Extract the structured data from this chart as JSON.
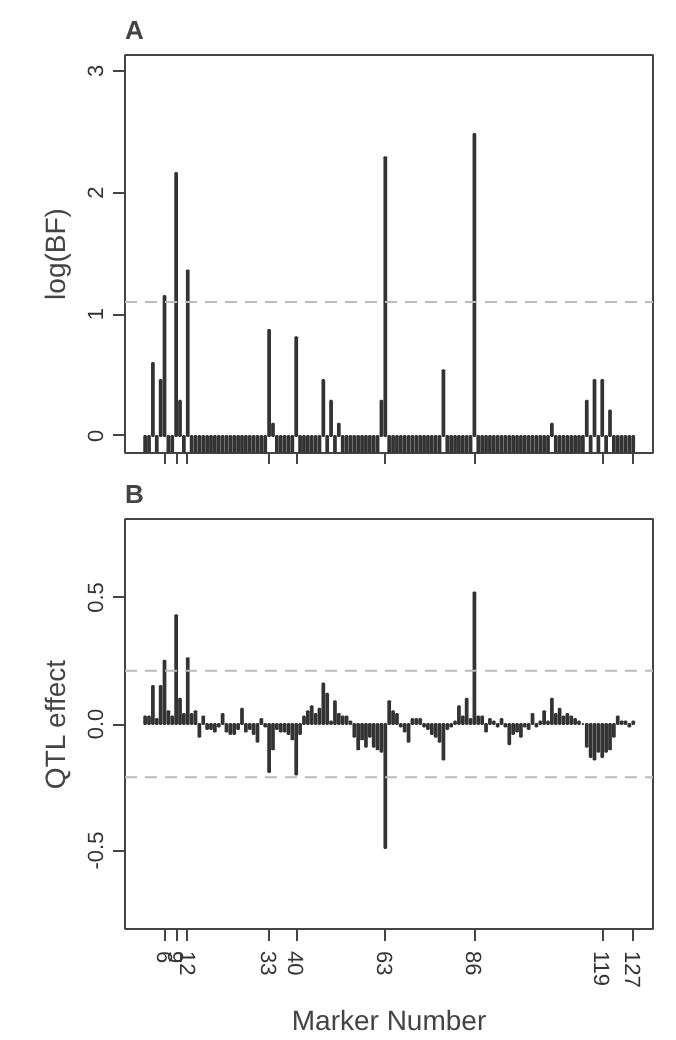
{
  "chart_data": [
    {
      "type": "bar",
      "title": "A",
      "ylabel": "log(BF)",
      "x": [
        1,
        2,
        3,
        4,
        5,
        6,
        7,
        8,
        9,
        10,
        11,
        12,
        13,
        14,
        15,
        16,
        17,
        18,
        19,
        20,
        21,
        22,
        23,
        24,
        25,
        26,
        27,
        28,
        29,
        30,
        31,
        32,
        33,
        34,
        35,
        36,
        37,
        38,
        39,
        40,
        41,
        42,
        43,
        44,
        45,
        46,
        47,
        48,
        49,
        50,
        51,
        52,
        53,
        54,
        55,
        56,
        57,
        58,
        59,
        60,
        61,
        62,
        63,
        64,
        65,
        66,
        67,
        68,
        69,
        70,
        71,
        72,
        73,
        74,
        75,
        76,
        77,
        78,
        79,
        80,
        81,
        82,
        83,
        84,
        85,
        86,
        87,
        88,
        89,
        90,
        91,
        92,
        93,
        94,
        95,
        96,
        97,
        98,
        99,
        100,
        101,
        102,
        103,
        104,
        105,
        106,
        107,
        108,
        109,
        110,
        111,
        112,
        113,
        114,
        115,
        116,
        117,
        118,
        119,
        120,
        121,
        122,
        123,
        124,
        125,
        126,
        127
      ],
      "values": [
        -0.13,
        -0.13,
        0.6,
        -0.13,
        0.46,
        1.15,
        -0.13,
        -0.13,
        2.16,
        0.29,
        -0.13,
        1.36,
        -0.13,
        -0.13,
        -0.13,
        -0.13,
        -0.13,
        -0.13,
        -0.13,
        -0.13,
        -0.13,
        -0.13,
        -0.13,
        -0.13,
        -0.13,
        -0.13,
        -0.13,
        -0.13,
        -0.13,
        -0.13,
        -0.13,
        -0.13,
        0.87,
        0.1,
        -0.13,
        -0.13,
        -0.13,
        -0.13,
        -0.13,
        0.81,
        -0.13,
        -0.13,
        -0.13,
        -0.13,
        -0.13,
        -0.13,
        0.46,
        -0.13,
        0.29,
        -0.13,
        0.1,
        -0.13,
        -0.13,
        -0.13,
        -0.13,
        -0.13,
        -0.13,
        -0.13,
        -0.13,
        -0.13,
        -0.13,
        0.29,
        2.29,
        -0.13,
        -0.13,
        -0.13,
        -0.13,
        -0.13,
        -0.13,
        -0.13,
        -0.13,
        -0.13,
        -0.13,
        -0.13,
        -0.13,
        -0.13,
        -0.13,
        0.54,
        -0.13,
        -0.13,
        -0.13,
        -0.13,
        -0.13,
        -0.13,
        -0.13,
        2.48,
        -0.13,
        -0.13,
        -0.13,
        -0.13,
        -0.13,
        -0.13,
        -0.13,
        -0.13,
        -0.13,
        -0.13,
        -0.13,
        -0.13,
        -0.13,
        -0.13,
        -0.13,
        -0.13,
        -0.13,
        -0.13,
        -0.13,
        0.1,
        -0.13,
        -0.13,
        -0.13,
        -0.13,
        -0.13,
        -0.13,
        -0.13,
        -0.13,
        0.29,
        -0.13,
        0.46,
        -0.13,
        0.46,
        -0.13,
        0.21,
        -0.13,
        -0.13,
        -0.13,
        -0.13,
        -0.13,
        -0.13
      ],
      "color": "#333333",
      "xlim": [
        -4.2,
        132.1
      ],
      "ylim": [
        -0.14,
        3.13
      ],
      "xticks": [
        {
          "value": 6,
          "label": null
        },
        {
          "value": 9,
          "label": null
        },
        {
          "value": 12,
          "label": null
        },
        {
          "value": 33,
          "label": null
        },
        {
          "value": 40,
          "label": null
        },
        {
          "value": 63,
          "label": null
        },
        {
          "value": 86,
          "label": null
        },
        {
          "value": 119,
          "label": null
        },
        {
          "value": 127,
          "label": null
        }
      ],
      "yticks": [
        0,
        1,
        2,
        3
      ],
      "tick_labels": "y",
      "ref_lines": [
        {
          "axis": "y",
          "value": 1.1,
          "color": "#bbbbbb",
          "line_style": "dashed"
        }
      ]
    },
    {
      "type": "bar",
      "title": "B",
      "ylabel": "QTL effect",
      "xlabel": "Marker Number",
      "x": [
        1,
        2,
        3,
        4,
        5,
        6,
        7,
        8,
        9,
        10,
        11,
        12,
        13,
        14,
        15,
        16,
        17,
        18,
        19,
        20,
        21,
        22,
        23,
        24,
        25,
        26,
        27,
        28,
        29,
        30,
        31,
        32,
        33,
        34,
        35,
        36,
        37,
        38,
        39,
        40,
        41,
        42,
        43,
        44,
        45,
        46,
        47,
        48,
        49,
        50,
        51,
        52,
        53,
        54,
        55,
        56,
        57,
        58,
        59,
        60,
        61,
        62,
        63,
        64,
        65,
        66,
        67,
        68,
        69,
        70,
        71,
        72,
        73,
        74,
        75,
        76,
        77,
        78,
        79,
        80,
        81,
        82,
        83,
        84,
        85,
        86,
        87,
        88,
        89,
        90,
        91,
        92,
        93,
        94,
        95,
        96,
        97,
        98,
        99,
        100,
        101,
        102,
        103,
        104,
        105,
        106,
        107,
        108,
        109,
        110,
        111,
        112,
        113,
        114,
        115,
        116,
        117,
        118,
        119,
        120,
        121,
        122,
        123,
        124,
        125,
        126,
        127
      ],
      "values": [
        0.03,
        0.03,
        0.15,
        0.02,
        0.15,
        0.25,
        0.05,
        0.03,
        0.43,
        0.1,
        0.04,
        0.26,
        0.04,
        0.05,
        -0.05,
        0.03,
        -0.02,
        -0.02,
        -0.03,
        -0.01,
        0.04,
        -0.03,
        -0.04,
        -0.04,
        -0.02,
        0.06,
        -0.03,
        -0.02,
        -0.04,
        -0.07,
        0.02,
        -0.01,
        -0.19,
        -0.1,
        -0.02,
        -0.03,
        -0.03,
        -0.04,
        -0.06,
        -0.2,
        -0.04,
        0.03,
        0.05,
        0.07,
        0.04,
        0.06,
        0.16,
        0.12,
        0.01,
        0.09,
        0.04,
        0.03,
        0.03,
        0.01,
        -0.05,
        -0.1,
        -0.06,
        -0.09,
        -0.05,
        -0.09,
        -0.1,
        -0.11,
        -0.49,
        0.09,
        0.05,
        0.04,
        -0.01,
        -0.03,
        -0.07,
        0.02,
        0.02,
        0.02,
        -0.01,
        -0.02,
        -0.04,
        -0.05,
        -0.07,
        -0.14,
        -0.02,
        -0.01,
        0.01,
        0.07,
        0.03,
        0.1,
        0.02,
        0.52,
        0.03,
        0.03,
        -0.03,
        0.02,
        0.01,
        -0.01,
        0.02,
        -0.01,
        -0.08,
        -0.04,
        -0.03,
        -0.05,
        -0.01,
        -0.02,
        0.04,
        -0.01,
        0.01,
        0.05,
        0.01,
        0.1,
        0.04,
        0.06,
        0.03,
        0.04,
        0.03,
        0.02,
        0.01,
        0.0,
        -0.09,
        -0.13,
        -0.14,
        -0.11,
        -0.13,
        -0.11,
        -0.1,
        -0.05,
        0.03,
        0.01,
        0.01,
        -0.01,
        0.01
      ],
      "color": "#333333",
      "xlim": [
        -4.2,
        132.1
      ],
      "ylim": [
        -0.81,
        0.81
      ],
      "xticks": [
        6,
        9,
        12,
        33,
        40,
        63,
        86,
        119,
        127
      ],
      "yticks": [
        {
          "value": -0.5,
          "label": "-0.5"
        },
        {
          "value": 0,
          "label": "0.0"
        },
        {
          "value": 0.5,
          "label": "0.5"
        }
      ],
      "ref_lines": [
        {
          "axis": "y",
          "value": 0.21,
          "color": "#bbbbbb",
          "line_style": "dashed"
        },
        {
          "axis": "y",
          "value": -0.21,
          "color": "#bbbbbb",
          "line_style": "dashed"
        }
      ]
    }
  ]
}
